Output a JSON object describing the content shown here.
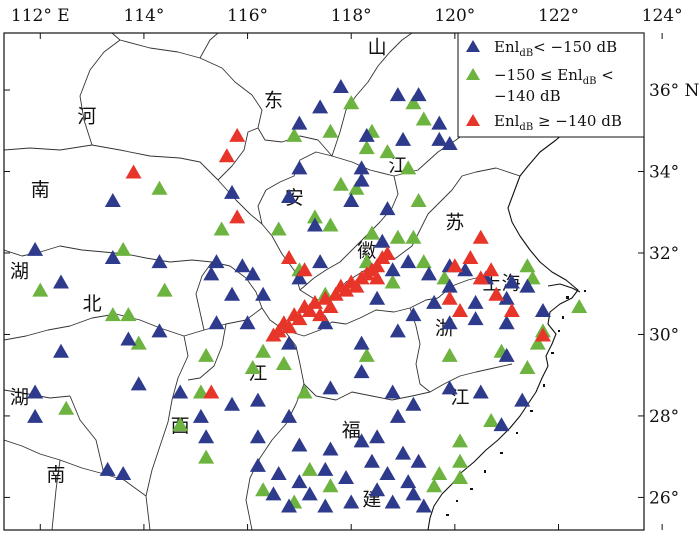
{
  "map": {
    "lon_ticks": [
      {
        "value": 112,
        "label": "112° E"
      },
      {
        "value": 114,
        "label": "114°"
      },
      {
        "value": 116,
        "label": "116°"
      },
      {
        "value": 118,
        "label": "118°"
      },
      {
        "value": 120,
        "label": "120°"
      },
      {
        "value": 122,
        "label": "122°"
      },
      {
        "value": 124,
        "label": "124°"
      }
    ],
    "lat_ticks": [
      {
        "value": 36,
        "label": "36° N"
      },
      {
        "value": 34,
        "label": "34°"
      },
      {
        "value": 32,
        "label": "32°"
      },
      {
        "value": 30,
        "label": "30°"
      },
      {
        "value": 28,
        "label": "28°"
      },
      {
        "value": 26,
        "label": "26°"
      }
    ],
    "lon_range": [
      111.3,
      123.65
    ],
    "lat_range": [
      25.2,
      37.4
    ],
    "province_chars": [
      {
        "text": "山",
        "lon": 118.5,
        "lat": 36.9
      },
      {
        "text": "东",
        "lon": 116.5,
        "lat": 35.6
      },
      {
        "text": "河",
        "lon": 112.9,
        "lat": 35.2
      },
      {
        "text": "江",
        "lon": 118.9,
        "lat": 34.0
      },
      {
        "text": "南",
        "lon": 112.0,
        "lat": 33.4
      },
      {
        "text": "安",
        "lon": 116.9,
        "lat": 33.2
      },
      {
        "text": "苏",
        "lon": 120.0,
        "lat": 32.6
      },
      {
        "text": "徽",
        "lon": 118.3,
        "lat": 31.9
      },
      {
        "text": "湖",
        "lon": 111.6,
        "lat": 31.4
      },
      {
        "text": "上海",
        "lon": 120.9,
        "lat": 31.1
      },
      {
        "text": "北",
        "lon": 113.0,
        "lat": 30.6
      },
      {
        "text": "浙",
        "lon": 119.8,
        "lat": 30.0
      },
      {
        "text": "江",
        "lon": 116.2,
        "lat": 28.9
      },
      {
        "text": "湖",
        "lon": 111.6,
        "lat": 28.3
      },
      {
        "text": "江",
        "lon": 120.1,
        "lat": 28.3
      },
      {
        "text": "西",
        "lon": 114.7,
        "lat": 27.6
      },
      {
        "text": "福",
        "lon": 118.0,
        "lat": 27.5
      },
      {
        "text": "南",
        "lon": 112.3,
        "lat": 26.4
      },
      {
        "text": "建",
        "lon": 118.4,
        "lat": 25.8
      }
    ],
    "legend": [
      {
        "label_main": "Enl",
        "label_sub": "dB",
        "label_rest": "< −150 dB",
        "color": "#2e3a8c"
      },
      {
        "label_main": "−150 ≤ Enl",
        "label_sub": "dB",
        "label_rest": " <",
        "label_line2": "−140 dB",
        "color": "#6db33f"
      },
      {
        "label_main": "Enl",
        "label_sub": "dB",
        "label_rest": " ≥ −140 dB",
        "color": "#e8352a"
      }
    ],
    "colors": {
      "blue": "#2e3a8c",
      "green": "#6db33f",
      "red": "#e8352a"
    }
  },
  "chart_data": {
    "type": "scatter",
    "series": [
      {
        "name": "Enl_dB < −150 dB",
        "color": "#2e3a8c",
        "points": [
          [
            117.8,
            36.1
          ],
          [
            118.9,
            35.9
          ],
          [
            119.3,
            35.9
          ],
          [
            117.4,
            35.6
          ],
          [
            117.0,
            35.2
          ],
          [
            119.7,
            35.2
          ],
          [
            118.3,
            34.9
          ],
          [
            119.0,
            34.8
          ],
          [
            119.7,
            34.8
          ],
          [
            119.9,
            34.7
          ],
          [
            117.0,
            34.1
          ],
          [
            118.2,
            34.1
          ],
          [
            116.8,
            33.4
          ],
          [
            115.7,
            33.5
          ],
          [
            118.0,
            33.3
          ],
          [
            118.7,
            33.1
          ],
          [
            113.4,
            33.3
          ],
          [
            117.3,
            32.7
          ],
          [
            118.6,
            32.3
          ],
          [
            111.9,
            32.1
          ],
          [
            113.4,
            31.9
          ],
          [
            114.3,
            31.8
          ],
          [
            112.4,
            31.3
          ],
          [
            115.4,
            31.8
          ],
          [
            115.9,
            31.7
          ],
          [
            116.1,
            31.5
          ],
          [
            115.3,
            31.5
          ],
          [
            116.3,
            31.0
          ],
          [
            115.7,
            31.0
          ],
          [
            117.0,
            31.4
          ],
          [
            117.4,
            31.8
          ],
          [
            118.8,
            31.6
          ],
          [
            119.1,
            31.8
          ],
          [
            119.5,
            31.5
          ],
          [
            119.9,
            31.7
          ],
          [
            120.2,
            31.6
          ],
          [
            119.9,
            31.2
          ],
          [
            120.6,
            31.4
          ],
          [
            121.1,
            31.3
          ],
          [
            121.4,
            31.2
          ],
          [
            121.0,
            30.9
          ],
          [
            120.4,
            30.8
          ],
          [
            119.6,
            30.8
          ],
          [
            119.9,
            30.3
          ],
          [
            120.4,
            30.4
          ],
          [
            121.0,
            30.3
          ],
          [
            118.5,
            30.9
          ],
          [
            119.2,
            30.5
          ],
          [
            118.9,
            30.1
          ],
          [
            118.2,
            29.8
          ],
          [
            117.5,
            30.3
          ],
          [
            116.8,
            29.8
          ],
          [
            116.0,
            30.3
          ],
          [
            115.4,
            30.3
          ],
          [
            114.3,
            30.1
          ],
          [
            113.7,
            29.9
          ],
          [
            112.4,
            29.6
          ],
          [
            111.9,
            28.6
          ],
          [
            111.9,
            28.0
          ],
          [
            113.9,
            28.8
          ],
          [
            114.7,
            28.6
          ],
          [
            115.1,
            28.0
          ],
          [
            115.7,
            28.3
          ],
          [
            116.2,
            28.4
          ],
          [
            116.8,
            28.0
          ],
          [
            117.6,
            28.7
          ],
          [
            118.2,
            29.1
          ],
          [
            118.8,
            28.6
          ],
          [
            118.9,
            28.0
          ],
          [
            119.2,
            28.3
          ],
          [
            119.9,
            28.7
          ],
          [
            120.5,
            28.6
          ],
          [
            121.3,
            28.4
          ],
          [
            121.0,
            29.5
          ],
          [
            120.9,
            27.8
          ],
          [
            115.2,
            27.5
          ],
          [
            116.2,
            27.5
          ],
          [
            117.0,
            27.3
          ],
          [
            117.6,
            27.2
          ],
          [
            118.2,
            27.4
          ],
          [
            118.5,
            27.5
          ],
          [
            119.0,
            27.1
          ],
          [
            119.3,
            26.9
          ],
          [
            116.2,
            26.8
          ],
          [
            116.6,
            26.6
          ],
          [
            117.0,
            26.4
          ],
          [
            117.5,
            26.7
          ],
          [
            117.9,
            26.5
          ],
          [
            118.4,
            26.9
          ],
          [
            118.7,
            26.6
          ],
          [
            119.1,
            26.4
          ],
          [
            117.2,
            26.1
          ],
          [
            117.5,
            25.8
          ],
          [
            118.0,
            25.9
          ],
          [
            118.5,
            26.2
          ],
          [
            118.8,
            25.9
          ],
          [
            119.2,
            26.1
          ],
          [
            116.5,
            26.1
          ],
          [
            116.8,
            25.8
          ],
          [
            119.4,
            25.8
          ],
          [
            113.3,
            26.7
          ],
          [
            113.6,
            26.6
          ],
          [
            121.7,
            30.6
          ],
          [
            118.2,
            33.8
          ]
        ]
      },
      {
        "name": "−150 ≤ Enl_dB < −140 dB",
        "color": "#6db33f",
        "points": [
          [
            119.2,
            35.7
          ],
          [
            119.4,
            35.3
          ],
          [
            118.0,
            35.7
          ],
          [
            118.4,
            35.0
          ],
          [
            117.6,
            35.0
          ],
          [
            116.9,
            34.9
          ],
          [
            118.3,
            34.6
          ],
          [
            118.7,
            34.5
          ],
          [
            119.1,
            34.1
          ],
          [
            117.8,
            33.7
          ],
          [
            118.1,
            33.6
          ],
          [
            119.3,
            33.3
          ],
          [
            114.3,
            33.6
          ],
          [
            117.3,
            32.9
          ],
          [
            117.6,
            32.7
          ],
          [
            118.4,
            32.5
          ],
          [
            118.9,
            32.4
          ],
          [
            119.2,
            32.4
          ],
          [
            115.5,
            32.6
          ],
          [
            116.6,
            32.6
          ],
          [
            113.6,
            32.1
          ],
          [
            117.0,
            31.6
          ],
          [
            118.3,
            31.8
          ],
          [
            118.8,
            31.3
          ],
          [
            119.4,
            31.8
          ],
          [
            119.8,
            31.4
          ],
          [
            117.5,
            31.0
          ],
          [
            114.4,
            31.1
          ],
          [
            113.4,
            30.5
          ],
          [
            113.7,
            30.5
          ],
          [
            113.9,
            29.8
          ],
          [
            115.2,
            29.5
          ],
          [
            116.1,
            29.2
          ],
          [
            116.7,
            29.3
          ],
          [
            116.3,
            29.6
          ],
          [
            115.1,
            28.6
          ],
          [
            114.7,
            27.8
          ],
          [
            115.2,
            27.0
          ],
          [
            112.5,
            28.2
          ],
          [
            118.3,
            29.5
          ],
          [
            119.9,
            29.5
          ],
          [
            120.9,
            29.6
          ],
          [
            121.4,
            29.2
          ],
          [
            121.6,
            29.8
          ],
          [
            121.7,
            30.1
          ],
          [
            121.4,
            31.7
          ],
          [
            121.5,
            31.4
          ],
          [
            122.4,
            30.7
          ],
          [
            120.7,
            27.9
          ],
          [
            120.1,
            27.4
          ],
          [
            120.1,
            26.9
          ],
          [
            119.7,
            26.6
          ],
          [
            120.1,
            26.5
          ],
          [
            116.3,
            26.2
          ],
          [
            117.2,
            26.7
          ],
          [
            117.6,
            26.3
          ],
          [
            116.9,
            25.9
          ],
          [
            119.6,
            26.3
          ],
          [
            117.1,
            28.6
          ],
          [
            112.0,
            31.1
          ]
        ]
      },
      {
        "name": "Enl_dB ≥ −140 dB",
        "color": "#e8352a",
        "points": [
          [
            115.8,
            34.9
          ],
          [
            115.6,
            34.4
          ],
          [
            113.8,
            34.0
          ],
          [
            115.8,
            32.9
          ],
          [
            116.8,
            31.9
          ],
          [
            117.1,
            31.6
          ],
          [
            116.6,
            30.1
          ],
          [
            116.7,
            30.3
          ],
          [
            116.9,
            30.5
          ],
          [
            117.1,
            30.7
          ],
          [
            117.3,
            30.8
          ],
          [
            117.5,
            30.9
          ],
          [
            117.7,
            31.0
          ],
          [
            117.8,
            31.2
          ],
          [
            118.0,
            31.3
          ],
          [
            118.2,
            31.4
          ],
          [
            118.3,
            31.5
          ],
          [
            118.4,
            31.6
          ],
          [
            118.5,
            31.7
          ],
          [
            118.6,
            31.9
          ],
          [
            118.7,
            32.0
          ],
          [
            116.5,
            30.0
          ],
          [
            116.8,
            30.2
          ],
          [
            117.0,
            30.4
          ],
          [
            117.2,
            30.6
          ],
          [
            117.4,
            30.5
          ],
          [
            117.6,
            30.7
          ],
          [
            117.9,
            31.1
          ],
          [
            118.1,
            31.2
          ],
          [
            118.5,
            31.4
          ],
          [
            115.3,
            28.6
          ],
          [
            120.0,
            31.7
          ],
          [
            120.3,
            31.9
          ],
          [
            120.5,
            31.4
          ],
          [
            120.7,
            31.6
          ],
          [
            120.8,
            31.0
          ],
          [
            121.1,
            30.6
          ],
          [
            121.7,
            30.0
          ],
          [
            119.9,
            30.9
          ],
          [
            120.1,
            30.6
          ],
          [
            120.5,
            32.4
          ]
        ]
      }
    ]
  }
}
